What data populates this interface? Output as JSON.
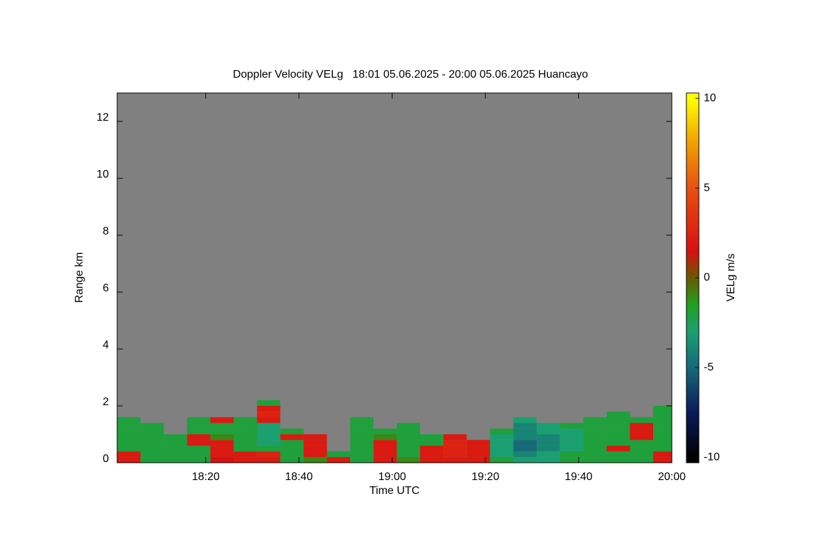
{
  "chart_data": {
    "type": "heatmap",
    "title": "Doppler Velocity VELg   18:01 05.06.2025 - 20:00 05.06.2025 Huancayo",
    "xlabel": "Time UTC",
    "ylabel": "Range km",
    "colorbar_label": "VELg m/s",
    "x": [
      1083.5,
      1088.5,
      1093.5,
      1098.5,
      1103.5,
      1108.5,
      1113.5,
      1118.5,
      1123.5,
      1128.5,
      1133.5,
      1138.5,
      1143.5,
      1148.5,
      1153.5,
      1158.5,
      1163.5,
      1168.5,
      1173.5,
      1178.5,
      1183.5,
      1188.5,
      1193.5,
      1198.5
    ],
    "y": [
      0.1,
      0.3,
      0.5,
      0.7,
      0.9,
      1.1,
      1.3,
      1.5,
      1.7,
      1.9,
      2.1
    ],
    "values": [
      [
        2,
        -2,
        -2,
        -2,
        1.5,
        2,
        2,
        -2,
        -1,
        2,
        -2,
        2,
        -1,
        2,
        2,
        2,
        -2,
        -3,
        -3,
        -2,
        -2,
        -2,
        -2,
        2
      ],
      [
        2,
        -2,
        -2,
        -2,
        2,
        2,
        2.5,
        -2,
        2,
        -2,
        -2,
        2,
        -2,
        2,
        2.5,
        2,
        -3,
        -4,
        -3,
        -2,
        -2,
        -2,
        -2,
        2
      ],
      [
        -2,
        -2,
        -2,
        -2,
        2,
        -2,
        -2,
        -2,
        2,
        null,
        -2,
        2,
        -2,
        2,
        2.5,
        2,
        -3,
        -5,
        -4,
        -3,
        -2,
        2,
        -2,
        -2
      ],
      [
        -2,
        -2,
        -2,
        2,
        2,
        -2,
        -3,
        -2,
        2,
        null,
        -2,
        2,
        -2,
        -2,
        2.5,
        2,
        -3,
        -5,
        -4,
        -3,
        -2,
        -2,
        -2,
        -2
      ],
      [
        -2,
        -2,
        -2,
        2,
        -1,
        -2,
        -3,
        2,
        2,
        null,
        -2,
        -1,
        -2,
        -2,
        2,
        null,
        -3,
        -4,
        -4,
        -3,
        -2,
        -2,
        2,
        -2
      ],
      [
        -2,
        -2,
        null,
        -2,
        -2,
        -2,
        -3,
        -2,
        null,
        null,
        -2,
        -2,
        -2,
        null,
        null,
        null,
        -2,
        -4,
        -3,
        -3,
        -2,
        -2,
        2,
        -2
      ],
      [
        -2,
        -2,
        null,
        -2,
        -2,
        -2,
        -3,
        null,
        null,
        null,
        -2,
        null,
        -2,
        null,
        null,
        null,
        null,
        -4,
        -3,
        -2,
        -2,
        -2,
        2,
        -2
      ],
      [
        -2,
        null,
        null,
        -2,
        2,
        -2,
        2,
        null,
        null,
        null,
        -2,
        null,
        null,
        null,
        null,
        null,
        null,
        -3,
        null,
        null,
        -2,
        -2,
        -2,
        -2
      ],
      [
        null,
        null,
        null,
        null,
        null,
        null,
        2.5,
        null,
        null,
        null,
        null,
        null,
        null,
        null,
        null,
        null,
        null,
        null,
        null,
        null,
        null,
        -2,
        null,
        -2
      ],
      [
        null,
        null,
        null,
        null,
        null,
        null,
        2,
        null,
        null,
        null,
        null,
        null,
        null,
        null,
        null,
        null,
        null,
        null,
        null,
        null,
        null,
        null,
        null,
        -2
      ],
      [
        null,
        null,
        null,
        null,
        null,
        null,
        -2,
        null,
        null,
        null,
        null,
        null,
        null,
        null,
        null,
        null,
        null,
        null,
        null,
        null,
        null,
        null,
        null,
        null
      ]
    ],
    "xlim": [
      1081,
      1200
    ],
    "xticks": [
      {
        "value": 1100,
        "label": "18:20"
      },
      {
        "value": 1120,
        "label": "18:40"
      },
      {
        "value": 1140,
        "label": "19:00"
      },
      {
        "value": 1160,
        "label": "19:20"
      },
      {
        "value": 1180,
        "label": "19:40"
      },
      {
        "value": 1200,
        "label": "20:00"
      }
    ],
    "ylim": [
      0,
      13
    ],
    "yticks": [
      0,
      2,
      4,
      6,
      8,
      10,
      12
    ],
    "clim": [
      -10.3,
      10.3
    ],
    "cticks": [
      -10,
      -5,
      0,
      5,
      10
    ],
    "background": "#808080",
    "colormap": [
      {
        "value": -10,
        "color": "#000000"
      },
      {
        "value": -7.5,
        "color": "#0b1a5a"
      },
      {
        "value": -5,
        "color": "#156a78"
      },
      {
        "value": -3,
        "color": "#1aa070"
      },
      {
        "value": -1.5,
        "color": "#20a020"
      },
      {
        "value": 0,
        "color": "#6a5a00"
      },
      {
        "value": 1.5,
        "color": "#d81010"
      },
      {
        "value": 5,
        "color": "#e85010"
      },
      {
        "value": 7.5,
        "color": "#f0a000"
      },
      {
        "value": 10,
        "color": "#ffff00"
      }
    ]
  }
}
